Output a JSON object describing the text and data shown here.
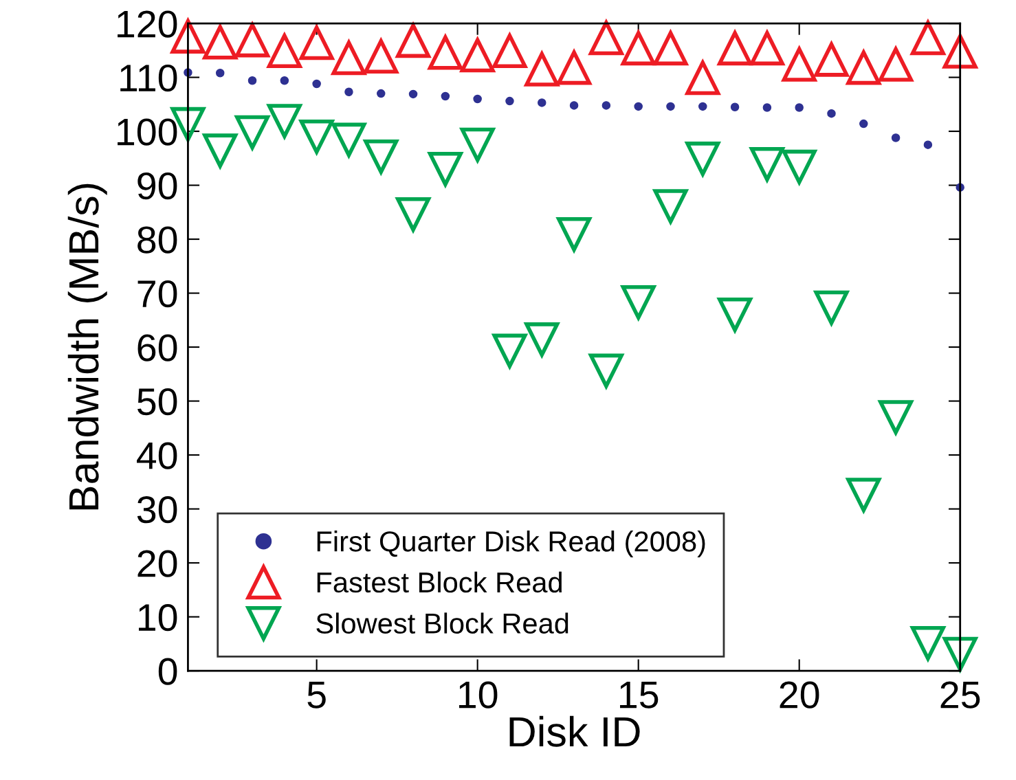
{
  "chart_data": {
    "type": "scatter",
    "xlabel": "Disk ID",
    "ylabel": "Bandwidth (MB/s)",
    "x": [
      1,
      2,
      3,
      4,
      5,
      6,
      7,
      8,
      9,
      10,
      11,
      12,
      13,
      14,
      15,
      16,
      17,
      18,
      19,
      20,
      21,
      22,
      23,
      24,
      25
    ],
    "xlim": [
      1,
      25
    ],
    "xticks": [
      5,
      10,
      15,
      20,
      25
    ],
    "ylim": [
      0,
      120
    ],
    "yticks": [
      0,
      10,
      20,
      30,
      40,
      50,
      60,
      70,
      80,
      90,
      100,
      110,
      120
    ],
    "grid": false,
    "legend": "bottom",
    "series": [
      {
        "name": "First Quarter Disk Read (2008)",
        "color": "#2e3192",
        "marker": "circle",
        "values": [
          110.9,
          110.8,
          109.4,
          109.4,
          108.8,
          107.3,
          107,
          106.9,
          106.5,
          106,
          105.6,
          105.3,
          104.8,
          104.8,
          104.6,
          104.6,
          104.6,
          104.5,
          104.4,
          104.4,
          103.3,
          101.4,
          98.8,
          97.5,
          89.6
        ]
      },
      {
        "name": "Fastest Block Read",
        "color": "#ed1c24",
        "marker": "triangle",
        "values": [
          117.6,
          116.5,
          116.9,
          114.9,
          116.4,
          113.6,
          113.9,
          116.8,
          114.6,
          114.1,
          114.9,
          111.5,
          111.8,
          117.3,
          115.4,
          115.4,
          109.9,
          115.4,
          115.4,
          112.4,
          113.3,
          111.8,
          112.4,
          117.3,
          114.8
        ]
      },
      {
        "name": "Slowest Block Read",
        "color": "#00a651",
        "marker": "triangle_down",
        "values": [
          101.3,
          96.4,
          99.8,
          101.9,
          99,
          98.4,
          95.3,
          84.6,
          93,
          97.5,
          59.3,
          61.4,
          80.9,
          55.6,
          68.3,
          86.1,
          94.9,
          66,
          93.9,
          93.4,
          67.3,
          32.6,
          47,
          5.1,
          3.1
        ]
      }
    ]
  }
}
